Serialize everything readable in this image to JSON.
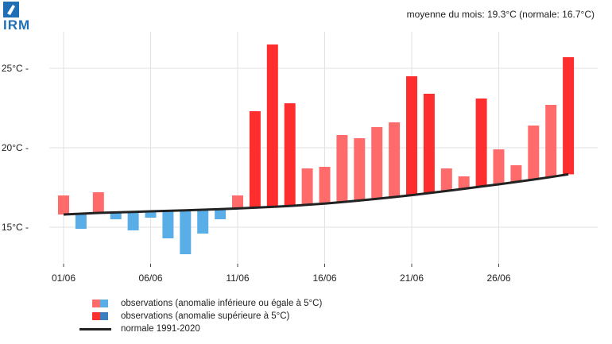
{
  "header": {
    "logo_text": "IRM",
    "subtitle": "moyenne du mois: 19.3°C (normale: 16.7°C)"
  },
  "legend": {
    "items": [
      {
        "label": "observations (anomalie inférieure ou égale à 5°C)",
        "colors": [
          "#ff6b6b",
          "#5aaee8"
        ]
      },
      {
        "label": "observations (anomalie supérieure à 5°C)",
        "colors": [
          "#ff2e2e",
          "#3a7fc0"
        ]
      },
      {
        "label": "normale 1991-2020",
        "colors": [
          "#222222"
        ]
      }
    ]
  },
  "colors": {
    "warm_small": "#ff6b6b",
    "warm_large": "#ff2e2e",
    "cold_small": "#5aaee8",
    "cold_large": "#3a7fc0",
    "normal_line": "#222222",
    "grid": "#e2e2e2"
  },
  "chart_data": {
    "type": "bar",
    "title": "moyenne du mois: 19.3°C (normale: 16.7°C)",
    "xlabel": "",
    "ylabel": "",
    "ylim": [
      12.7,
      27.3
    ],
    "yticks": [
      15,
      20,
      25
    ],
    "ytick_labels": [
      "15°C -",
      "20°C -",
      "25°C -"
    ],
    "xticks": [
      1,
      6,
      11,
      16,
      21,
      26
    ],
    "xtick_labels": [
      "01/06",
      "06/06",
      "11/06",
      "16/06",
      "21/06",
      "26/06"
    ],
    "days": [
      1,
      2,
      3,
      4,
      5,
      6,
      7,
      8,
      9,
      10,
      11,
      12,
      13,
      14,
      15,
      16,
      17,
      18,
      19,
      20,
      21,
      22,
      23,
      24,
      25,
      26,
      27,
      28,
      29,
      30
    ],
    "observed": [
      17.0,
      14.9,
      17.2,
      15.5,
      14.8,
      15.6,
      14.3,
      13.3,
      14.6,
      15.5,
      17.0,
      22.3,
      26.5,
      22.8,
      18.7,
      18.8,
      20.8,
      20.6,
      21.3,
      21.6,
      24.5,
      23.4,
      18.7,
      18.2,
      23.1,
      19.9,
      18.9,
      21.4,
      22.7,
      25.7
    ],
    "normal": [
      15.8,
      15.85,
      15.9,
      15.93,
      15.96,
      16.0,
      16.03,
      16.06,
      16.1,
      16.14,
      16.18,
      16.23,
      16.28,
      16.34,
      16.41,
      16.49,
      16.58,
      16.68,
      16.79,
      16.9,
      17.02,
      17.15,
      17.28,
      17.42,
      17.56,
      17.7,
      17.85,
      18.0,
      18.16,
      18.33
    ],
    "anomaly_threshold": 5
  }
}
